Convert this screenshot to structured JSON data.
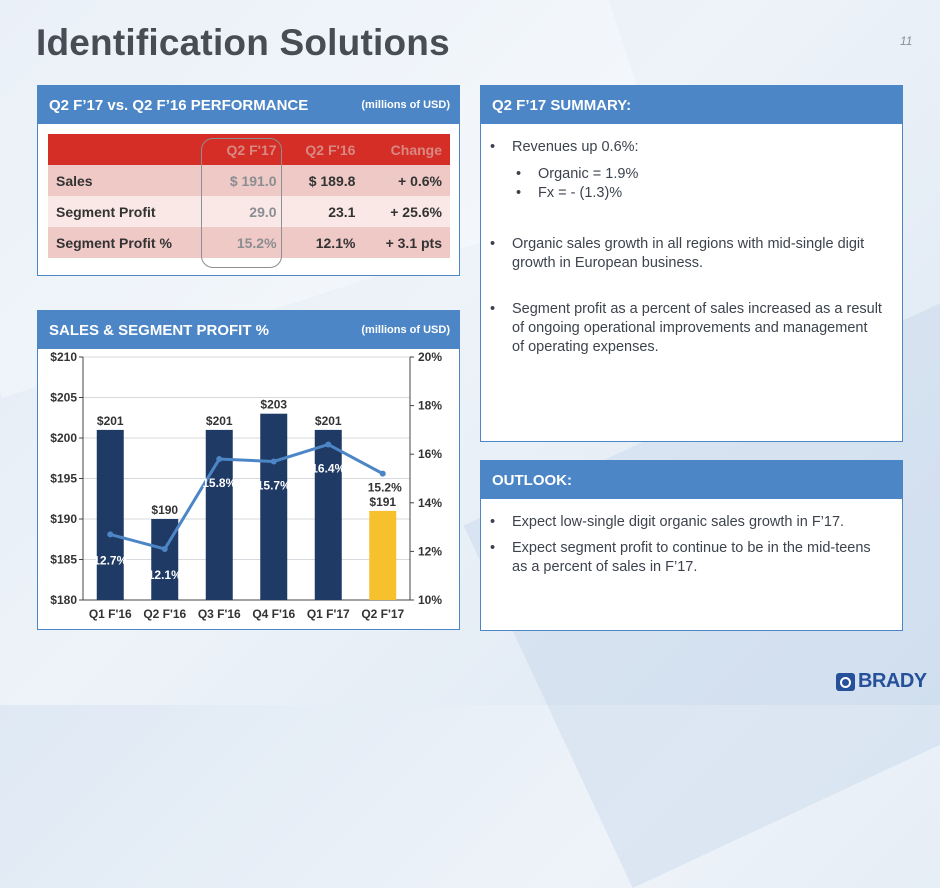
{
  "title": "Identification Solutions",
  "page_number": "11",
  "performance": {
    "header": "Q2 F’17 vs. Q2 F’16 PERFORMANCE",
    "units": "(millions of USD)",
    "columns": [
      "",
      "Q2 F'17",
      "Q2 F'16",
      "Change"
    ],
    "rows": [
      {
        "label": "Sales",
        "current": "$ 191.0",
        "prior": "$ 189.8",
        "change": "+ 0.6%"
      },
      {
        "label": "Segment Profit",
        "current": "29.0",
        "prior": "23.1",
        "change": "+ 25.6%"
      },
      {
        "label": "Segment Profit %",
        "current": "15.2%",
        "prior": "12.1%",
        "change": "+ 3.1 pts"
      }
    ]
  },
  "chart_panel": {
    "header": "SALES & SEGMENT PROFIT %",
    "units": "(millions of USD)"
  },
  "chart_data": {
    "type": "bar",
    "categories": [
      "Q1 F'16",
      "Q2 F'16",
      "Q3 F'16",
      "Q4 F'16",
      "Q1 F'17",
      "Q2 F'17"
    ],
    "series": [
      {
        "type": "bar",
        "axis": "left",
        "values": [
          201,
          190,
          201,
          203,
          201,
          191
        ],
        "labels": [
          "$201",
          "$190",
          "$201",
          "$203",
          "$201",
          "$191"
        ]
      },
      {
        "type": "line",
        "axis": "right",
        "values": [
          12.7,
          12.1,
          15.8,
          15.7,
          16.4,
          15.2
        ],
        "labels": [
          "12.7%",
          "12.1%",
          "15.8%",
          "15.7%",
          "16.4%",
          "15.2%"
        ]
      }
    ],
    "y_left": {
      "min": 180,
      "max": 210,
      "ticks": [
        "$180",
        "$185",
        "$190",
        "$195",
        "$200",
        "$205",
        "$210"
      ]
    },
    "y_right": {
      "min": 10,
      "max": 20,
      "ticks": [
        "10%",
        "12%",
        "14%",
        "16%",
        "18%",
        "20%"
      ]
    },
    "colors": {
      "bar": "#1f3a64",
      "highlight_bar": "#f7c12e",
      "line": "#4c86c6"
    },
    "grid": true
  },
  "summary": {
    "header": "Q2 F’17 SUMMARY:",
    "bullet1": "Revenues up 0.6%:",
    "sub1": "Organic =  1.9%",
    "sub2": "Fx = - (1.3)%",
    "bullet2": "Organic sales growth in all regions with mid-single digit growth in European business.",
    "bullet3": "Segment profit as a percent of sales increased as a result of ongoing operational improvements and management of operating expenses."
  },
  "outlook": {
    "header": "OUTLOOK:",
    "bullet1": "Expect low-single digit organic sales growth in F’17.",
    "bullet2": "Expect segment profit to continue to be in the mid-teens as a percent of sales in F’17."
  },
  "logo": {
    "text": "BRADY",
    "color": "#27509b"
  }
}
